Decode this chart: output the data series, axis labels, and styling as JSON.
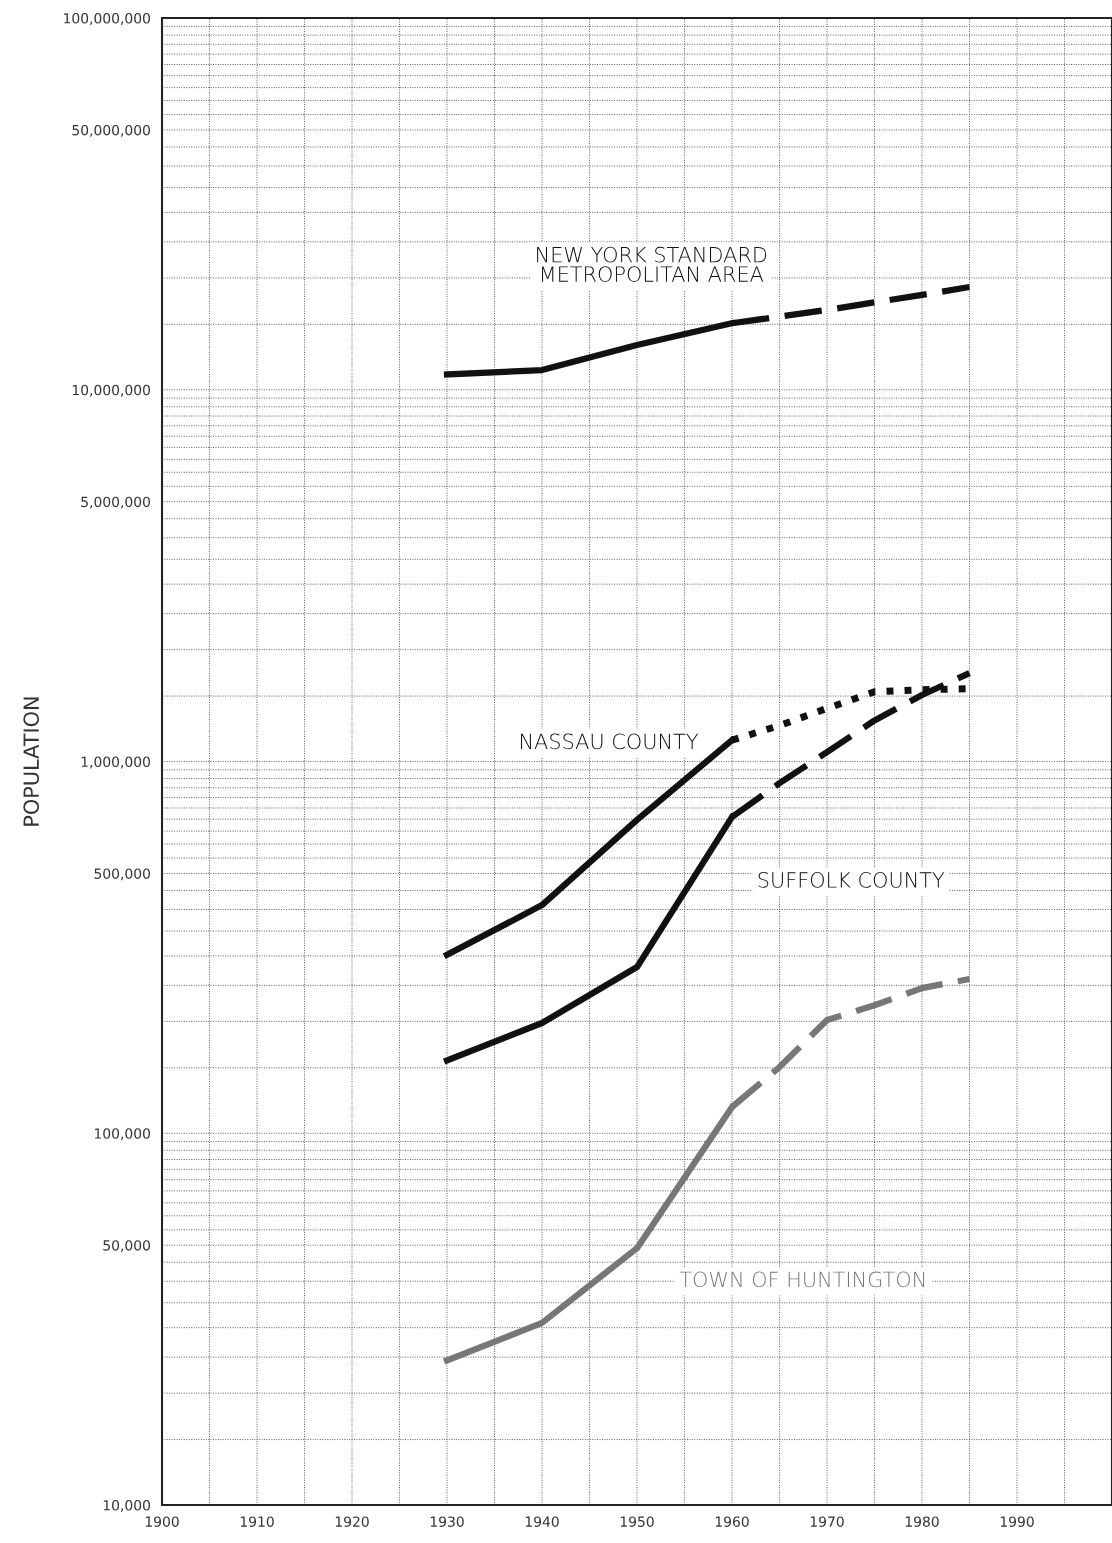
{
  "chart_data": {
    "type": "line",
    "ylabel": "POPULATION",
    "log": "y",
    "grid": true,
    "legend": false,
    "marker": "none",
    "xlim": [
      1900,
      2000
    ],
    "xticks": [
      1900,
      1910,
      1920,
      1930,
      1940,
      1950,
      1960,
      1970,
      1980,
      1990
    ],
    "ylim": [
      10000,
      100000000
    ],
    "yticks": [
      {
        "value": 10000,
        "label": "10,000"
      },
      {
        "value": 50000,
        "label": "50,000"
      },
      {
        "value": 100000,
        "label": "100,000"
      },
      {
        "value": 500000,
        "label": "500,000"
      },
      {
        "value": 1000000,
        "label": "1,000,000"
      },
      {
        "value": 5000000,
        "label": "5,000,000"
      },
      {
        "value": 10000000,
        "label": "10,000,000"
      },
      {
        "value": 50000000,
        "label": "50,000,000"
      },
      {
        "value": 100000000,
        "label": "100,000,000"
      }
    ],
    "series": [
      {
        "name": "NEW YORK STANDARD\nMETROPOLITAN AREA",
        "color": "#111111",
        "line_style": "solid",
        "x": [
          1930,
          1940,
          1950,
          1960
        ],
        "values": [
          11000000,
          11300000,
          13200000,
          15100000
        ]
      },
      {
        "color": "#111111",
        "line_style": "dashed",
        "x": [
          1960,
          1970,
          1980,
          1985
        ],
        "values": [
          15100000,
          16400000,
          18000000,
          18900000
        ]
      },
      {
        "name": "NASSAU COUNTY",
        "color": "#111111",
        "line_style": "solid",
        "x": [
          1930,
          1940,
          1950,
          1960
        ],
        "values": [
          302000,
          411000,
          697000,
          1142000
        ]
      },
      {
        "color": "#111111",
        "line_style": "dotted",
        "x": [
          1960,
          1965,
          1970,
          1975,
          1980,
          1985
        ],
        "values": [
          1142000,
          1250000,
          1390000,
          1540000,
          1560000,
          1570000
        ]
      },
      {
        "name": "SUFFOLK COUNTY",
        "color": "#111111",
        "line_style": "solid",
        "x": [
          1930,
          1940,
          1950,
          1960
        ],
        "values": [
          157000,
          198000,
          280000,
          709000
        ]
      },
      {
        "color": "#111111",
        "line_style": "dashed",
        "x": [
          1960,
          1965,
          1970,
          1975,
          1980,
          1985
        ],
        "values": [
          709000,
          875000,
          1060000,
          1290000,
          1510000,
          1730000
        ]
      },
      {
        "name": "TOWN OF HUNTINGTON",
        "color": "#777777",
        "line_style": "solid",
        "x": [
          1930,
          1940,
          1950,
          1960
        ],
        "values": [
          24500,
          30900,
          49100,
          117700
        ]
      },
      {
        "color": "#777777",
        "line_style": "dashed",
        "x": [
          1960,
          1965,
          1970,
          1975,
          1980,
          1985
        ],
        "values": [
          117700,
          150700,
          201700,
          221000,
          245800,
          260000
        ]
      }
    ]
  }
}
